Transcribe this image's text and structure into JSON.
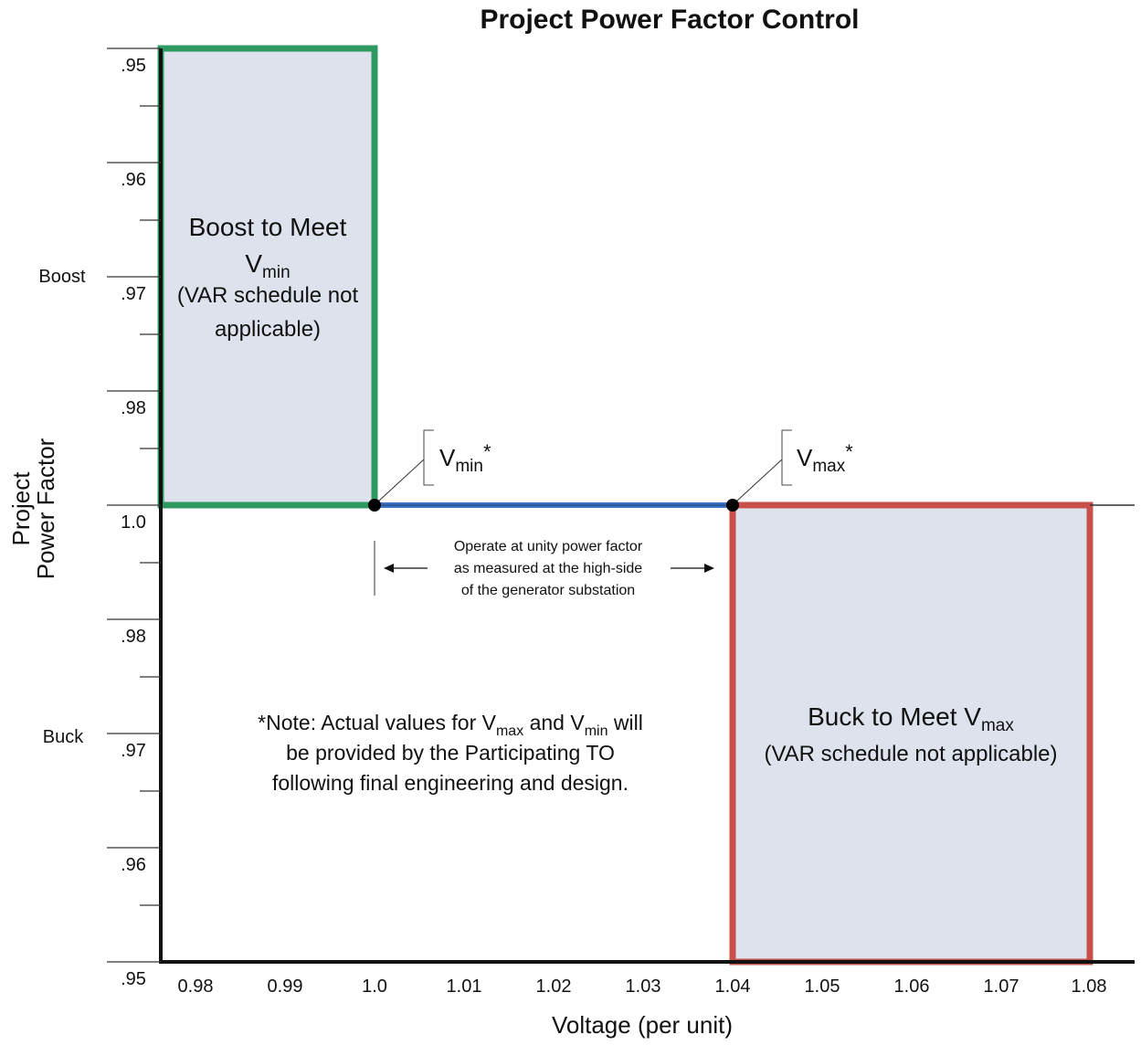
{
  "chart": {
    "title": "Project Power Factor Control",
    "x_axis_label": "Voltage (per unit)",
    "y_axis_label_line1": "Project",
    "y_axis_label_line2": "Power Factor",
    "x_ticks": [
      "0.98",
      "0.99",
      "1.0",
      "1.01",
      "1.02",
      "1.03",
      "1.04",
      "1.05",
      "1.06",
      "1.07",
      "1.08"
    ],
    "y_ticks": [
      ".95",
      ".96",
      ".97",
      ".98",
      "1.0",
      ".98",
      ".97",
      ".96",
      ".95"
    ],
    "side_labels": {
      "boost": "Boost",
      "buck": "Buck"
    },
    "colors": {
      "boost_border": "#2e9a62",
      "buck_border": "#c9504a",
      "unity_line": "#3d72c4",
      "region_fill": "#dde2ec"
    }
  },
  "boost_region": {
    "line1": "Boost to Meet",
    "line2_main": "V",
    "line2_sub": "min",
    "line3": "(VAR schedule not",
    "line4": "applicable)",
    "x_range": [
      0.976,
      1.0
    ],
    "pf_range": [
      "1.0",
      ".95"
    ]
  },
  "buck_region": {
    "line1_main": "Buck to Meet V",
    "line1_sub": "max",
    "line2": "(VAR schedule not applicable)",
    "x_range": [
      1.04,
      1.08
    ],
    "pf_range": [
      "1.0",
      ".95"
    ]
  },
  "callouts": {
    "vmin": {
      "main": "V",
      "sub": "min",
      "star": "*",
      "x": 1.0
    },
    "vmax": {
      "main": "V",
      "sub": "max",
      "star": "*",
      "x": 1.04
    }
  },
  "unity_band": {
    "line1": "Operate at unity power factor",
    "line2": "as measured at the high-side",
    "line3": "of the generator substation"
  },
  "note": {
    "l1_a": "*Note: Actual values for V",
    "l1_sub1": "max",
    "l1_b": " and V",
    "l1_sub2": "min",
    "l1_c": " will",
    "line2": "be provided by the Participating TO",
    "line3": "following final engineering and design."
  }
}
